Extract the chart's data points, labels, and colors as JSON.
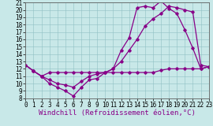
{
  "xlabel": "Windchill (Refroidissement éolien,°C)",
  "xlim": [
    0,
    23
  ],
  "ylim": [
    8,
    21
  ],
  "yticks": [
    8,
    9,
    10,
    11,
    12,
    13,
    14,
    15,
    16,
    17,
    18,
    19,
    20,
    21
  ],
  "xticks": [
    0,
    1,
    2,
    3,
    4,
    5,
    6,
    7,
    8,
    9,
    10,
    11,
    12,
    13,
    14,
    15,
    16,
    17,
    18,
    19,
    20,
    21,
    22,
    23
  ],
  "bg_color": "#c8e8e8",
  "line_color": "#880088",
  "line1_x": [
    0,
    1,
    2,
    3,
    4,
    5,
    6,
    7,
    8,
    9,
    10,
    11,
    12,
    13,
    14,
    15,
    16,
    17,
    18,
    19,
    20,
    21,
    22,
    23
  ],
  "line1_y": [
    12.5,
    11.7,
    11.0,
    10.0,
    9.5,
    9.0,
    8.3,
    9.5,
    10.5,
    10.7,
    11.5,
    12.0,
    14.5,
    16.2,
    20.3,
    20.5,
    20.3,
    21.2,
    20.2,
    19.5,
    17.3,
    14.8,
    12.0,
    12.3
  ],
  "line2_x": [
    0,
    1,
    2,
    3,
    4,
    5,
    6,
    7,
    8,
    9,
    10,
    11,
    12,
    13,
    14,
    15,
    16,
    17,
    18,
    19,
    20,
    21,
    22,
    23
  ],
  "line2_y": [
    12.5,
    11.7,
    11.0,
    10.5,
    10.0,
    9.8,
    9.5,
    10.3,
    11.0,
    11.3,
    11.5,
    12.0,
    13.0,
    14.5,
    16.0,
    17.8,
    18.8,
    19.5,
    20.5,
    20.3,
    20.0,
    19.7,
    12.5,
    12.3
  ],
  "line3_x": [
    0,
    1,
    2,
    3,
    4,
    5,
    6,
    7,
    8,
    9,
    10,
    11,
    12,
    13,
    14,
    15,
    16,
    17,
    18,
    19,
    20,
    21,
    22,
    23
  ],
  "line3_y": [
    12.5,
    11.7,
    11.0,
    11.5,
    11.5,
    11.5,
    11.5,
    11.5,
    11.5,
    11.5,
    11.5,
    11.5,
    11.5,
    11.5,
    11.5,
    11.5,
    11.5,
    11.8,
    12.0,
    12.0,
    12.0,
    12.0,
    12.0,
    12.3
  ],
  "marker": "D",
  "markersize": 1.8,
  "linewidth": 0.9,
  "font_family": "monospace",
  "xlabel_fontsize": 6.5,
  "tick_fontsize": 5.5
}
